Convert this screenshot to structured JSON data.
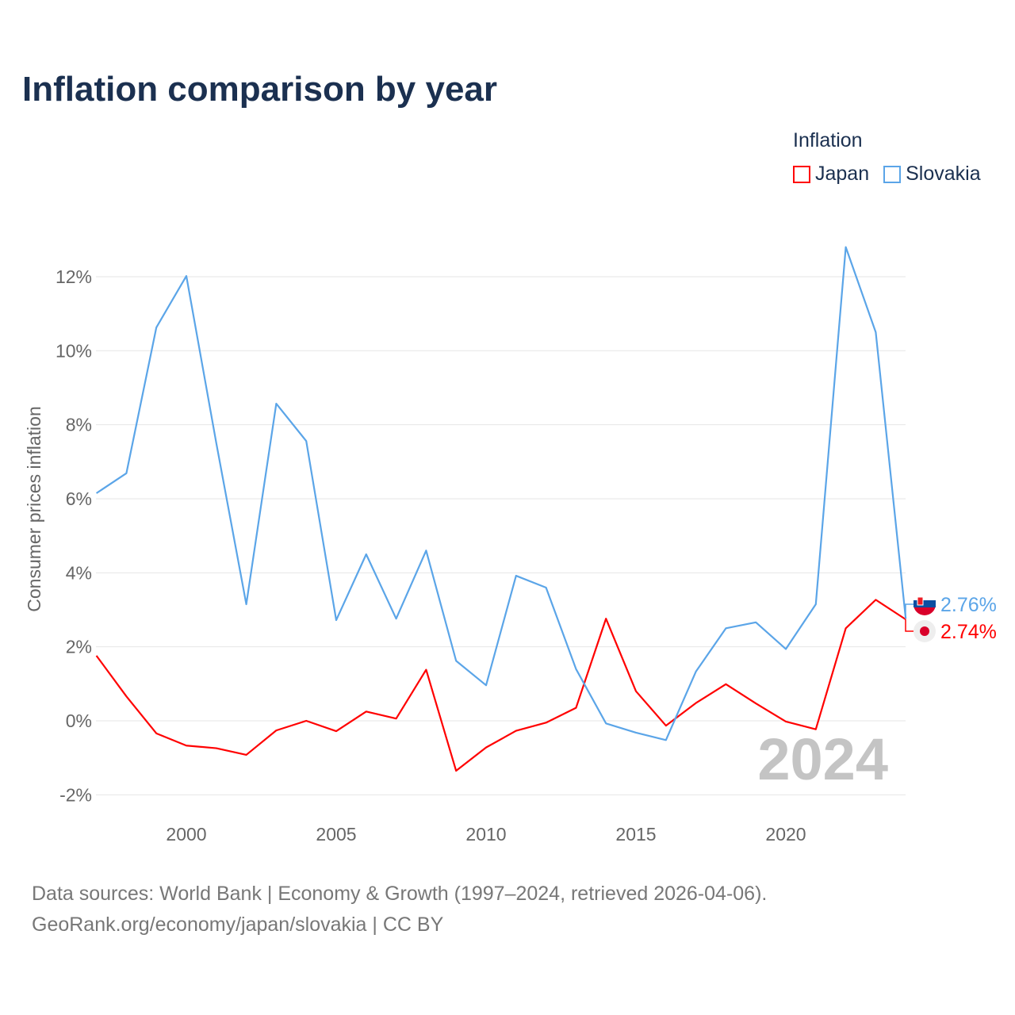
{
  "chart_data": {
    "type": "line",
    "title": "Inflation comparison by year",
    "ylabel": "Consumer prices inflation",
    "xlabel": "",
    "legend_title": "Inflation",
    "legend_position": "top-right",
    "xlim": [
      1997,
      2024
    ],
    "ylim": [
      -2.6,
      13
    ],
    "yticks": [
      -2,
      0,
      2,
      4,
      6,
      8,
      10,
      12
    ],
    "ytick_labels": [
      "-2%",
      "0%",
      "2%",
      "4%",
      "6%",
      "8%",
      "10%",
      "12%"
    ],
    "xticks": [
      2000,
      2005,
      2010,
      2015,
      2020
    ],
    "xtick_labels": [
      "2000",
      "2005",
      "2010",
      "2015",
      "2020"
    ],
    "grid": true,
    "year_watermark": "2024",
    "x": [
      1997,
      1998,
      1999,
      2000,
      2001,
      2002,
      2003,
      2004,
      2005,
      2006,
      2007,
      2008,
      2009,
      2010,
      2011,
      2012,
      2013,
      2014,
      2015,
      2016,
      2017,
      2018,
      2019,
      2020,
      2021,
      2022,
      2023,
      2024
    ],
    "series": [
      {
        "name": "Japan",
        "color": "#ff0000",
        "end_label": "2.74%",
        "values": [
          1.76,
          0.66,
          -0.34,
          -0.67,
          -0.74,
          -0.92,
          -0.26,
          0.0,
          -0.28,
          0.25,
          0.06,
          1.38,
          -1.35,
          -0.72,
          -0.27,
          -0.05,
          0.35,
          2.76,
          0.8,
          -0.13,
          0.48,
          0.99,
          0.47,
          -0.02,
          -0.23,
          2.5,
          3.27,
          2.74
        ]
      },
      {
        "name": "Slovakia",
        "color": "#5ba5e8",
        "end_label": "2.76%",
        "values": [
          6.15,
          6.69,
          10.63,
          12.02,
          7.5,
          3.15,
          8.57,
          7.56,
          2.72,
          4.5,
          2.76,
          4.6,
          1.62,
          0.96,
          3.92,
          3.6,
          1.4,
          -0.07,
          -0.32,
          -0.52,
          1.33,
          2.5,
          2.66,
          1.94,
          3.15,
          12.8,
          10.5,
          2.76
        ]
      }
    ]
  },
  "footer": {
    "line1": "Data sources: World Bank | Economy & Growth (1997–2024, retrieved 2026-04-06).",
    "line2": "GeoRank.org/economy/japan/slovakia | CC BY"
  }
}
